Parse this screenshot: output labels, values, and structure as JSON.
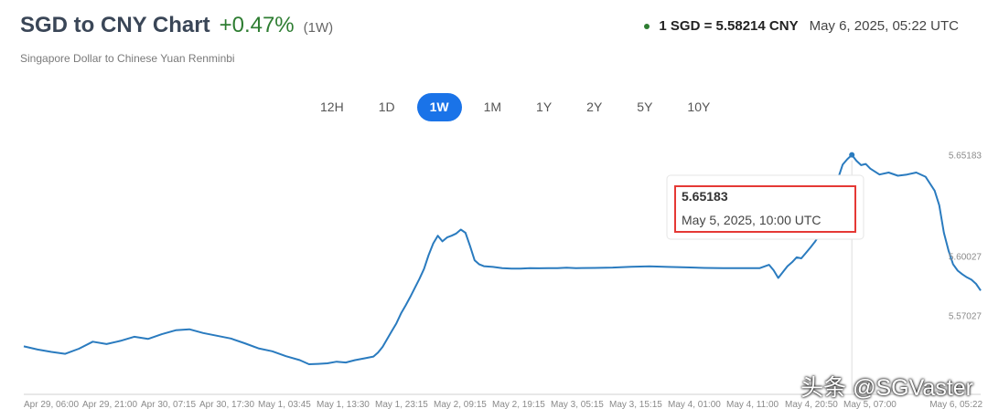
{
  "header": {
    "title": "SGD to CNY Chart",
    "change": "+0.47%",
    "period": "(1W)",
    "subtitle": "Singapore Dollar to Chinese Yuan Renminbi",
    "rate": "1 SGD = 5.58214 CNY",
    "timestamp": "May 6, 2025, 05:22 UTC"
  },
  "tabs": [
    {
      "label": "12H",
      "active": false
    },
    {
      "label": "1D",
      "active": false
    },
    {
      "label": "1W",
      "active": true
    },
    {
      "label": "1M",
      "active": false
    },
    {
      "label": "1Y",
      "active": false
    },
    {
      "label": "2Y",
      "active": false
    },
    {
      "label": "5Y",
      "active": false
    },
    {
      "label": "10Y",
      "active": false
    }
  ],
  "tooltip": {
    "value": "5.65183",
    "time": "May 5, 2025, 10:00 UTC",
    "border_color": "#e53935"
  },
  "watermark": "头条 @SGVaster",
  "colors": {
    "line": "#2a7bbf",
    "accent": "#1a73e8",
    "positive": "#2e7d32"
  },
  "chart_data": {
    "type": "line",
    "series": [
      {
        "points": [
          [
            0,
            5.5544
          ],
          [
            1.5,
            5.5528
          ],
          [
            3,
            5.5516
          ],
          [
            4.5,
            5.5506
          ],
          [
            6,
            5.5532
          ],
          [
            7.5,
            5.5568
          ],
          [
            9,
            5.5556
          ],
          [
            10.5,
            5.5572
          ],
          [
            12,
            5.5593
          ],
          [
            13.5,
            5.5582
          ],
          [
            15,
            5.5606
          ],
          [
            16.5,
            5.5626
          ],
          [
            18,
            5.5631
          ],
          [
            19.5,
            5.5612
          ],
          [
            21,
            5.5598
          ],
          [
            22.5,
            5.5584
          ],
          [
            24,
            5.556
          ],
          [
            25.5,
            5.5534
          ],
          [
            27,
            5.5519
          ],
          [
            28.5,
            5.5494
          ],
          [
            30,
            5.5474
          ],
          [
            31,
            5.5453
          ],
          [
            32,
            5.5455
          ],
          [
            33,
            5.5458
          ],
          [
            34,
            5.5466
          ],
          [
            35,
            5.5462
          ],
          [
            36,
            5.5474
          ],
          [
            37,
            5.5483
          ],
          [
            38,
            5.5492
          ],
          [
            38.5,
            5.5512
          ],
          [
            39,
            5.5542
          ],
          [
            39.5,
            5.5582
          ],
          [
            40,
            5.5622
          ],
          [
            40.5,
            5.5661
          ],
          [
            41,
            5.5712
          ],
          [
            41.5,
            5.5752
          ],
          [
            42,
            5.5795
          ],
          [
            42.5,
            5.5842
          ],
          [
            43,
            5.5888
          ],
          [
            43.5,
            5.5938
          ],
          [
            44,
            5.6008
          ],
          [
            44.5,
            5.6068
          ],
          [
            45,
            5.6107
          ],
          [
            45.5,
            5.6078
          ],
          [
            46,
            5.6098
          ],
          [
            46.5,
            5.6107
          ],
          [
            47,
            5.6118
          ],
          [
            47.5,
            5.6138
          ],
          [
            48,
            5.6122
          ],
          [
            48.5,
            5.6055
          ],
          [
            49,
            5.5982
          ],
          [
            49.5,
            5.5961
          ],
          [
            50,
            5.5952
          ],
          [
            51,
            5.5948
          ],
          [
            52,
            5.5942
          ],
          [
            53,
            5.594
          ],
          [
            54,
            5.594
          ],
          [
            55,
            5.5942
          ],
          [
            56,
            5.5941
          ],
          [
            57,
            5.5942
          ],
          [
            58,
            5.5942
          ],
          [
            59,
            5.5944
          ],
          [
            60,
            5.5942
          ],
          [
            62,
            5.5943
          ],
          [
            64,
            5.5945
          ],
          [
            66,
            5.5949
          ],
          [
            68,
            5.5951
          ],
          [
            70,
            5.5948
          ],
          [
            72,
            5.5946
          ],
          [
            74,
            5.5943
          ],
          [
            76,
            5.5942
          ],
          [
            78,
            5.5942
          ],
          [
            80,
            5.5942
          ],
          [
            81,
            5.5959
          ],
          [
            81.5,
            5.5931
          ],
          [
            82,
            5.5892
          ],
          [
            82.5,
            5.5922
          ],
          [
            83,
            5.5952
          ],
          [
            83.5,
            5.5972
          ],
          [
            84,
            5.5997
          ],
          [
            84.5,
            5.5992
          ],
          [
            85,
            5.6019
          ],
          [
            85.5,
            5.6047
          ],
          [
            86,
            5.6077
          ],
          [
            86.5,
            5.6112
          ],
          [
            87,
            5.6168
          ],
          [
            87.5,
            5.6262
          ],
          [
            88,
            5.6332
          ],
          [
            88.5,
            5.6398
          ],
          [
            89,
            5.6468
          ],
          [
            89.5,
            5.6496
          ],
          [
            90,
            5.6518
          ],
          [
            90.5,
            5.6488
          ],
          [
            91,
            5.6466
          ],
          [
            91.5,
            5.6472
          ],
          [
            92,
            5.6448
          ],
          [
            93,
            5.6418
          ],
          [
            94,
            5.6428
          ],
          [
            95,
            5.6412
          ],
          [
            96,
            5.6418
          ],
          [
            97,
            5.6428
          ],
          [
            98,
            5.6407
          ],
          [
            99,
            5.6336
          ],
          [
            99.5,
            5.6262
          ],
          [
            100,
            5.6122
          ],
          [
            100.5,
            5.6032
          ],
          [
            101,
            5.5962
          ],
          [
            101.5,
            5.5929
          ],
          [
            102,
            5.5911
          ],
          [
            102.5,
            5.5895
          ],
          [
            103,
            5.5883
          ],
          [
            103.5,
            5.5862
          ],
          [
            104,
            5.5828
          ]
        ]
      }
    ],
    "x_tick_labels": [
      "Apr 29, 06:00",
      "Apr 29, 21:00",
      "Apr 30, 07:15",
      "Apr 30, 17:30",
      "May 1, 03:45",
      "May 1, 13:30",
      "May 1, 23:15",
      "May 2, 09:15",
      "May 2, 19:15",
      "May 3, 05:15",
      "May 3, 15:15",
      "May 4, 01:00",
      "May 4, 11:00",
      "May 4, 20:50",
      "May 5, 07:00",
      "May 6, 05:22"
    ],
    "y_tick_labels": [
      "5.65183",
      "5.60027",
      "5.57027"
    ],
    "ylim": [
      5.53,
      5.66
    ],
    "xlim": [
      0,
      104
    ],
    "peak_x": 90,
    "grid": false
  }
}
